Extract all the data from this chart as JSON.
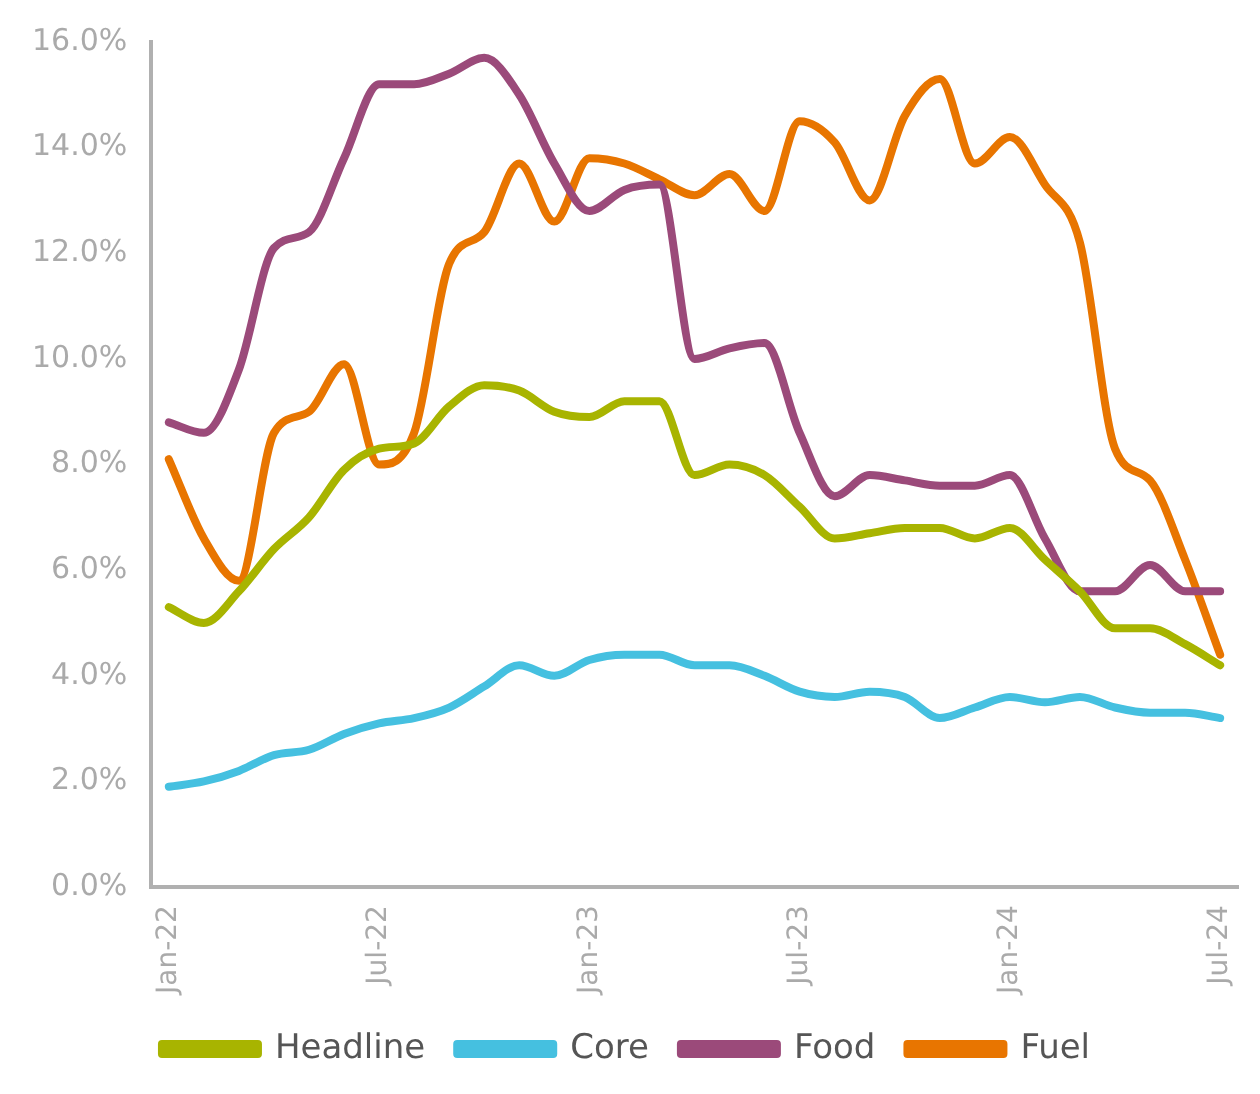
{
  "chart_data": {
    "type": "line",
    "categories": [
      "Jan-22",
      null,
      null,
      null,
      null,
      null,
      "Jul-22",
      null,
      null,
      null,
      null,
      null,
      "Jan-23",
      null,
      null,
      null,
      null,
      null,
      "Jul-23",
      null,
      null,
      null,
      null,
      null,
      "Jan-24",
      null,
      null,
      null,
      null,
      null,
      "Jul-24"
    ],
    "series": [
      {
        "name": "Headline",
        "color": "#a8b400",
        "values": [
          5.3,
          5.0,
          5.6,
          6.4,
          7.0,
          7.9,
          8.3,
          8.4,
          9.1,
          9.5,
          9.4,
          9.0,
          8.9,
          9.2,
          9.2,
          7.8,
          8.0,
          7.8,
          7.2,
          6.6,
          6.7,
          6.8,
          6.8,
          6.6,
          6.8,
          6.2,
          5.6,
          4.9,
          4.9,
          4.6,
          4.2
        ]
      },
      {
        "name": "Core",
        "color": "#45c0e0",
        "values": [
          1.9,
          2.0,
          2.2,
          2.5,
          2.6,
          2.9,
          3.1,
          3.2,
          3.4,
          3.8,
          4.2,
          4.0,
          4.3,
          4.4,
          4.4,
          4.2,
          4.2,
          4.0,
          3.7,
          3.6,
          3.7,
          3.6,
          3.2,
          3.4,
          3.6,
          3.5,
          3.6,
          3.4,
          3.3,
          3.3,
          3.2
        ]
      },
      {
        "name": "Food",
        "color": "#9b4a7a",
        "values": [
          8.8,
          8.6,
          9.8,
          12.1,
          12.4,
          13.8,
          15.2,
          15.2,
          15.4,
          15.7,
          15.0,
          13.7,
          12.8,
          13.2,
          13.3,
          10.0,
          10.2,
          10.3,
          8.6,
          7.4,
          7.8,
          7.7,
          7.6,
          7.6,
          7.8,
          6.6,
          5.6,
          5.6,
          6.1,
          5.6,
          5.6
        ]
      },
      {
        "name": "Fuel",
        "color": "#e87500",
        "values": [
          8.1,
          6.6,
          5.8,
          8.6,
          9.0,
          9.9,
          8.0,
          8.6,
          11.8,
          12.4,
          13.7,
          12.6,
          13.8,
          13.7,
          13.4,
          13.1,
          13.5,
          12.8,
          14.5,
          14.1,
          13.0,
          14.6,
          15.3,
          13.7,
          14.2,
          13.3,
          12.2,
          8.3,
          7.7,
          6.2,
          4.4
        ]
      }
    ],
    "ylim": [
      0,
      16
    ],
    "yticks": [
      {
        "value": 0,
        "label": "0.0%"
      },
      {
        "value": 2,
        "label": "2.0%"
      },
      {
        "value": 4,
        "label": "4.0%"
      },
      {
        "value": 6,
        "label": "6.0%"
      },
      {
        "value": 8,
        "label": "8.0%"
      },
      {
        "value": 10,
        "label": "10.0%"
      },
      {
        "value": 12,
        "label": "12.0%"
      },
      {
        "value": 14,
        "label": "14.0%"
      },
      {
        "value": 16,
        "label": "16.0%"
      }
    ],
    "grid": false,
    "legend": "bottom",
    "marker": "none",
    "line_style": "solid"
  }
}
